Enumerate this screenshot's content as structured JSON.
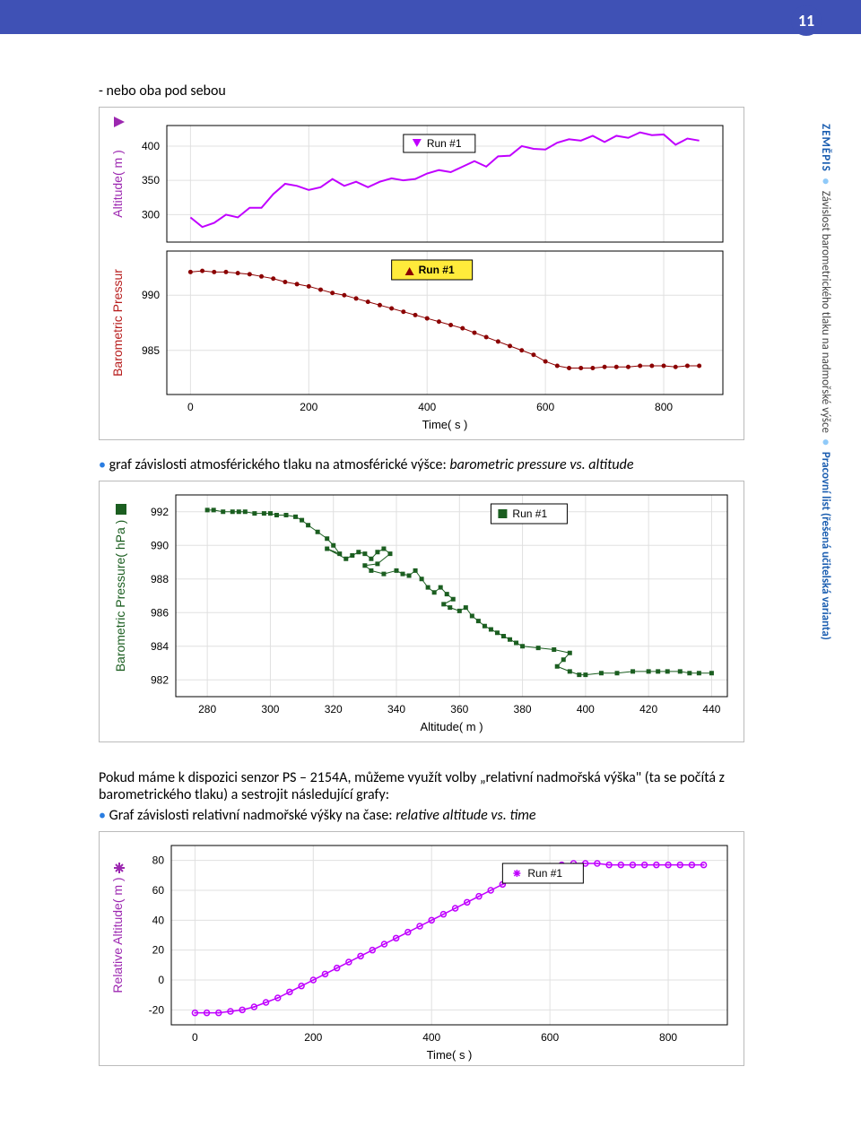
{
  "page_number": "11",
  "text": {
    "line1": "- nebo oba pod sebou",
    "line2_prefix": "graf závislosti atmosférického tlaku na atmosférické výšce: ",
    "line2_italic": "barometric pressure vs. altitude",
    "para2_1": "Pokud máme k dispozici senzor PS – 2154A, můžeme využít volby „relativní nadmořská výška\" (ta se počítá z barometrického tlaku) a sestrojit následující grafy:",
    "bullet3_prefix": "Graf závislosti relativní nadmořské výšky na čase: ",
    "bullet3_italic": "relative altitude vs. time"
  },
  "sidebar": {
    "subject": "ZEMĚPIS",
    "topic": "Závislost barometrického tlaku na nadmořské výšce",
    "doc": "Pracovní list (řešená učitelská varianta)"
  },
  "chart1": {
    "type": "dual-line",
    "legend": "Run #1",
    "top": {
      "ylabel": "Altitude( m )",
      "ylabel_color": "#9c27b0",
      "yticks": [
        300,
        350,
        400
      ],
      "color": "#c000ff",
      "data": [
        [
          0,
          296
        ],
        [
          20,
          282
        ],
        [
          40,
          288
        ],
        [
          60,
          300
        ],
        [
          80,
          296
        ],
        [
          100,
          310
        ],
        [
          120,
          310
        ],
        [
          140,
          330
        ],
        [
          160,
          345
        ],
        [
          180,
          342
        ],
        [
          200,
          336
        ],
        [
          220,
          340
        ],
        [
          240,
          352
        ],
        [
          260,
          342
        ],
        [
          280,
          348
        ],
        [
          300,
          340
        ],
        [
          320,
          348
        ],
        [
          340,
          353
        ],
        [
          360,
          350
        ],
        [
          380,
          352
        ],
        [
          400,
          360
        ],
        [
          420,
          365
        ],
        [
          440,
          362
        ],
        [
          460,
          370
        ],
        [
          480,
          378
        ],
        [
          500,
          370
        ],
        [
          520,
          385
        ],
        [
          540,
          386
        ],
        [
          560,
          400
        ],
        [
          580,
          396
        ],
        [
          600,
          395
        ],
        [
          620,
          405
        ],
        [
          640,
          410
        ],
        [
          660,
          408
        ],
        [
          680,
          415
        ],
        [
          700,
          406
        ],
        [
          720,
          415
        ],
        [
          740,
          412
        ],
        [
          760,
          420
        ],
        [
          780,
          416
        ],
        [
          800,
          417
        ],
        [
          820,
          402
        ],
        [
          840,
          411
        ],
        [
          860,
          408
        ]
      ]
    },
    "bottom": {
      "ylabel": "Barometric Pressur",
      "ylabel_color": "#b71c1c",
      "yticks": [
        985,
        990
      ],
      "color": "#8b0000",
      "data": [
        [
          0,
          992.1
        ],
        [
          20,
          992.2
        ],
        [
          40,
          992.1
        ],
        [
          60,
          992.1
        ],
        [
          80,
          992.0
        ],
        [
          100,
          991.9
        ],
        [
          120,
          991.7
        ],
        [
          140,
          991.5
        ],
        [
          160,
          991.2
        ],
        [
          180,
          991.0
        ],
        [
          200,
          990.8
        ],
        [
          220,
          990.5
        ],
        [
          240,
          990.2
        ],
        [
          260,
          990.0
        ],
        [
          280,
          989.7
        ],
        [
          300,
          989.4
        ],
        [
          320,
          989.1
        ],
        [
          340,
          988.8
        ],
        [
          360,
          988.5
        ],
        [
          380,
          988.2
        ],
        [
          400,
          987.9
        ],
        [
          420,
          987.6
        ],
        [
          440,
          987.3
        ],
        [
          460,
          987.0
        ],
        [
          480,
          986.6
        ],
        [
          500,
          986.2
        ],
        [
          520,
          985.8
        ],
        [
          540,
          985.4
        ],
        [
          560,
          985.0
        ],
        [
          580,
          984.6
        ],
        [
          600,
          984.0
        ],
        [
          620,
          983.6
        ],
        [
          640,
          983.4
        ],
        [
          660,
          983.4
        ],
        [
          680,
          983.4
        ],
        [
          700,
          983.5
        ],
        [
          720,
          983.5
        ],
        [
          740,
          983.5
        ],
        [
          760,
          983.6
        ],
        [
          780,
          983.6
        ],
        [
          800,
          983.6
        ],
        [
          820,
          983.5
        ],
        [
          840,
          983.6
        ],
        [
          860,
          983.6
        ]
      ]
    },
    "xlabel": "Time( s )",
    "xticks": [
      0,
      200,
      400,
      600,
      800
    ]
  },
  "chart2": {
    "type": "scatter-line",
    "legend": "Run #1",
    "ylabel": "Barometric Pressure( hPa )",
    "ylabel_color": "#1b5e20",
    "color": "#1b5e20",
    "yticks": [
      982,
      984,
      986,
      988,
      990,
      992
    ],
    "xlabel": "Altitude( m )",
    "xticks": [
      280,
      300,
      320,
      340,
      360,
      380,
      400,
      420,
      440
    ],
    "data": [
      [
        280,
        992.1
      ],
      [
        282,
        992.1
      ],
      [
        285,
        992.0
      ],
      [
        288,
        992.0
      ],
      [
        290,
        992.0
      ],
      [
        292,
        992.0
      ],
      [
        295,
        991.9
      ],
      [
        298,
        991.9
      ],
      [
        300,
        991.9
      ],
      [
        302,
        991.8
      ],
      [
        305,
        991.8
      ],
      [
        308,
        991.7
      ],
      [
        310,
        991.5
      ],
      [
        312,
        991.2
      ],
      [
        315,
        990.8
      ],
      [
        318,
        990.4
      ],
      [
        320,
        990.0
      ],
      [
        322,
        989.5
      ],
      [
        318,
        989.8
      ],
      [
        324,
        989.2
      ],
      [
        326,
        989.4
      ],
      [
        328,
        989.6
      ],
      [
        330,
        989.5
      ],
      [
        332,
        989.2
      ],
      [
        334,
        989.6
      ],
      [
        336,
        989.8
      ],
      [
        338,
        989.5
      ],
      [
        334,
        988.9
      ],
      [
        330,
        988.8
      ],
      [
        332,
        988.5
      ],
      [
        336,
        988.3
      ],
      [
        340,
        988.5
      ],
      [
        342,
        988.3
      ],
      [
        344,
        988.2
      ],
      [
        346,
        988.5
      ],
      [
        348,
        988.0
      ],
      [
        350,
        987.5
      ],
      [
        352,
        987.2
      ],
      [
        354,
        987.5
      ],
      [
        356,
        987.1
      ],
      [
        358,
        986.8
      ],
      [
        355,
        986.5
      ],
      [
        357,
        986.3
      ],
      [
        360,
        986.1
      ],
      [
        362,
        986.3
      ],
      [
        364,
        985.8
      ],
      [
        366,
        985.5
      ],
      [
        368,
        985.2
      ],
      [
        370,
        985.0
      ],
      [
        372,
        984.8
      ],
      [
        374,
        984.6
      ],
      [
        376,
        984.4
      ],
      [
        378,
        984.2
      ],
      [
        380,
        984.0
      ],
      [
        385,
        983.9
      ],
      [
        390,
        983.8
      ],
      [
        395,
        983.6
      ],
      [
        393,
        983.2
      ],
      [
        391,
        982.8
      ],
      [
        395,
        982.5
      ],
      [
        398,
        982.3
      ],
      [
        400,
        982.3
      ],
      [
        405,
        982.4
      ],
      [
        410,
        982.4
      ],
      [
        415,
        982.5
      ],
      [
        420,
        982.5
      ],
      [
        423,
        982.5
      ],
      [
        426,
        982.5
      ],
      [
        430,
        982.5
      ],
      [
        433,
        982.4
      ],
      [
        436,
        982.4
      ],
      [
        440,
        982.4
      ]
    ]
  },
  "chart3": {
    "type": "scatter-line",
    "legend": "Run #1",
    "ylabel": "Relative Altitude( m )",
    "ylabel_color": "#9c27b0",
    "color": "#c000ff",
    "yticks": [
      -20,
      0,
      20,
      40,
      60,
      80
    ],
    "xlabel": "Time( s )",
    "xticks": [
      0,
      200,
      400,
      600,
      800
    ],
    "data": [
      [
        0,
        -22
      ],
      [
        20,
        -22
      ],
      [
        40,
        -22
      ],
      [
        60,
        -21
      ],
      [
        80,
        -20
      ],
      [
        100,
        -18
      ],
      [
        120,
        -15
      ],
      [
        140,
        -12
      ],
      [
        160,
        -8
      ],
      [
        180,
        -4
      ],
      [
        200,
        0
      ],
      [
        220,
        4
      ],
      [
        240,
        8
      ],
      [
        260,
        12
      ],
      [
        280,
        16
      ],
      [
        300,
        20
      ],
      [
        320,
        24
      ],
      [
        340,
        28
      ],
      [
        360,
        32
      ],
      [
        380,
        36
      ],
      [
        400,
        40
      ],
      [
        420,
        44
      ],
      [
        440,
        48
      ],
      [
        460,
        52
      ],
      [
        480,
        56
      ],
      [
        500,
        60
      ],
      [
        520,
        64
      ],
      [
        540,
        67
      ],
      [
        560,
        71
      ],
      [
        580,
        74
      ],
      [
        600,
        76
      ],
      [
        620,
        77
      ],
      [
        640,
        78
      ],
      [
        660,
        78
      ],
      [
        680,
        78
      ],
      [
        700,
        77
      ],
      [
        720,
        77
      ],
      [
        740,
        77
      ],
      [
        760,
        77
      ],
      [
        780,
        77
      ],
      [
        800,
        77
      ],
      [
        820,
        77
      ],
      [
        840,
        77
      ],
      [
        860,
        77
      ]
    ]
  }
}
